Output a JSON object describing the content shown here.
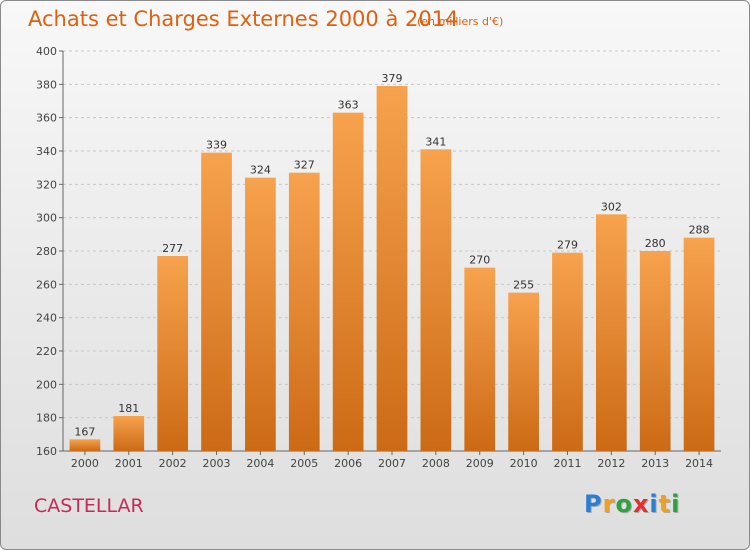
{
  "header": {
    "title": "Achats et Charges Externes 2000 à 2014",
    "subtitle": "(en milliers d'€)"
  },
  "footer": {
    "town": "CASTELLAR",
    "logo_letters": [
      "P",
      "r",
      "o",
      "x",
      "i",
      "t",
      "i"
    ],
    "logo_colors": [
      "#2a7fd0",
      "#f0a020",
      "#30a040",
      "#e03030",
      "#2a7fd0",
      "#f0a020",
      "#30a040"
    ]
  },
  "colors": {
    "bar_light": "#f7a24e",
    "bar_dark": "#cc6a15",
    "title": "#e06010",
    "town": "#c8285a"
  },
  "chart_data": {
    "type": "bar",
    "categories": [
      "2000",
      "2001",
      "2002",
      "2003",
      "2004",
      "2005",
      "2006",
      "2007",
      "2008",
      "2009",
      "2010",
      "2011",
      "2012",
      "2013",
      "2014"
    ],
    "values": [
      167,
      181,
      277,
      339,
      324,
      327,
      363,
      379,
      341,
      270,
      255,
      279,
      302,
      280,
      288
    ],
    "data_labels": [
      "167",
      "181",
      "277",
      "339",
      "324",
      "327",
      "363",
      "379",
      "341",
      "270",
      "255",
      "279",
      "302",
      "280",
      "288"
    ],
    "ylim": [
      160,
      400
    ],
    "yticks": [
      160,
      180,
      200,
      220,
      240,
      260,
      280,
      300,
      320,
      340,
      360,
      380,
      400
    ],
    "ytick_labels": [
      "160",
      "180",
      "200",
      "220",
      "240",
      "260",
      "280",
      "300",
      "320",
      "340",
      "360",
      "380",
      "400"
    ],
    "grid": true,
    "xlabel": "",
    "ylabel": ""
  }
}
